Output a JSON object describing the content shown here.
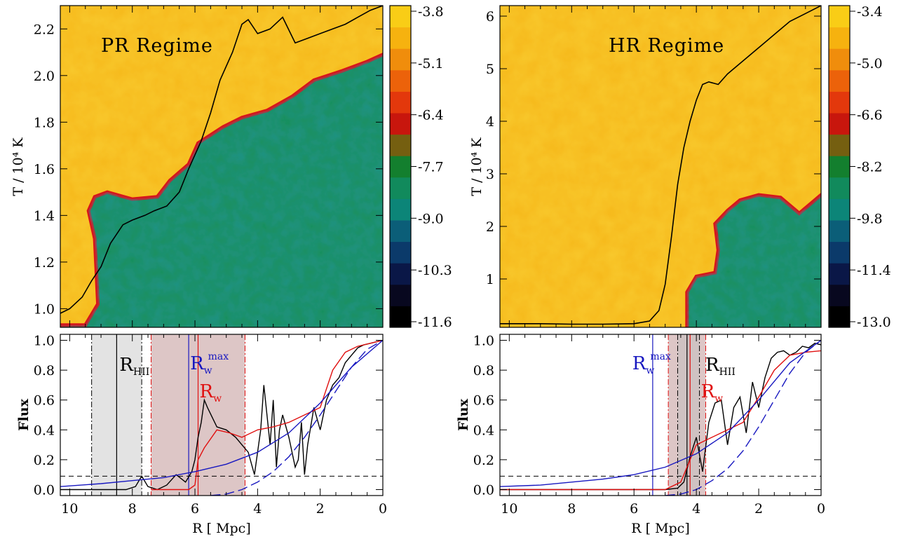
{
  "colorbar_palette": [
    "#000000",
    "#08081f",
    "#0a1747",
    "#0b3a6a",
    "#0b5e78",
    "#0c8578",
    "#118a5c",
    "#137f2e",
    "#755f10",
    "#c8160d",
    "#e3380c",
    "#ec620a",
    "#f08d0c",
    "#f6b20f",
    "#f9cd16"
  ],
  "chart_data": [
    {
      "id": "pr-heatmap",
      "type": "heatmap",
      "title": "",
      "annotation": "PR Regime",
      "xlabel": "",
      "ylabel": "T / 10⁴ K",
      "xlim": [
        10.3,
        0
      ],
      "ylim": [
        0.92,
        2.3
      ],
      "yticks": [
        "1.0",
        "1.2",
        "1.4",
        "1.6",
        "1.8",
        "2.0",
        "2.2"
      ],
      "colorbar_ticks": [
        "-3.8",
        "-5.1",
        "-6.4",
        "-7.7",
        "-9.0",
        "-10.3",
        "-11.6"
      ],
      "boundary_curve": [
        [
          10.3,
          0.93
        ],
        [
          9.5,
          0.93
        ],
        [
          9.1,
          1.02
        ],
        [
          9.2,
          1.3
        ],
        [
          9.4,
          1.42
        ],
        [
          9.2,
          1.48
        ],
        [
          8.8,
          1.5
        ],
        [
          8.0,
          1.47
        ],
        [
          7.2,
          1.48
        ],
        [
          6.8,
          1.55
        ],
        [
          6.2,
          1.62
        ],
        [
          5.9,
          1.71
        ],
        [
          5.1,
          1.78
        ],
        [
          4.5,
          1.82
        ],
        [
          3.7,
          1.85
        ],
        [
          2.9,
          1.91
        ],
        [
          2.2,
          1.98
        ],
        [
          1.3,
          2.02
        ],
        [
          0.5,
          2.06
        ],
        [
          0,
          2.09
        ]
      ],
      "line": {
        "x": [
          10.3,
          10.0,
          9.6,
          9.3,
          9.0,
          8.7,
          8.3,
          8.0,
          7.6,
          7.3,
          6.9,
          6.5,
          6.2,
          5.8,
          5.5,
          5.2,
          4.8,
          4.5,
          4.3,
          4.0,
          3.6,
          3.2,
          2.8,
          2.4,
          2.0,
          1.6,
          1.2,
          0.8,
          0.4,
          0
        ],
        "y": [
          0.98,
          1.0,
          1.05,
          1.12,
          1.18,
          1.28,
          1.36,
          1.38,
          1.4,
          1.42,
          1.44,
          1.5,
          1.6,
          1.72,
          1.84,
          1.98,
          2.1,
          2.22,
          2.24,
          2.18,
          2.2,
          2.25,
          2.14,
          2.16,
          2.18,
          2.2,
          2.22,
          2.25,
          2.28,
          2.3
        ]
      }
    },
    {
      "id": "hr-heatmap",
      "type": "heatmap",
      "title": "",
      "annotation": "HR Regime",
      "xlabel": "",
      "ylabel": "T / 10⁴ K",
      "xlim": [
        10.3,
        0
      ],
      "ylim": [
        0.08,
        6.2
      ],
      "yticks": [
        "1",
        "2",
        "3",
        "4",
        "5",
        "6"
      ],
      "colorbar_ticks": [
        "-3.4",
        "-5.0",
        "-6.6",
        "-8.2",
        "-9.8",
        "-11.4",
        "-13.0"
      ],
      "boundary_curve": [
        [
          4.3,
          0.08
        ],
        [
          4.3,
          0.75
        ],
        [
          4.0,
          1.05
        ],
        [
          3.4,
          1.12
        ],
        [
          3.3,
          1.55
        ],
        [
          3.4,
          2.05
        ],
        [
          3.0,
          2.3
        ],
        [
          2.6,
          2.5
        ],
        [
          2.0,
          2.6
        ],
        [
          1.3,
          2.55
        ],
        [
          0.7,
          2.25
        ],
        [
          0.3,
          2.45
        ],
        [
          0,
          2.6
        ]
      ],
      "line": {
        "x": [
          10.3,
          9.0,
          8.0,
          7.0,
          6.0,
          5.5,
          5.2,
          5.0,
          4.8,
          4.6,
          4.4,
          4.2,
          4.0,
          3.8,
          3.6,
          3.3,
          3.0,
          2.6,
          2.2,
          1.8,
          1.4,
          1.0,
          0.5,
          0
        ],
        "y": [
          0.15,
          0.15,
          0.14,
          0.14,
          0.15,
          0.2,
          0.4,
          0.9,
          1.8,
          2.8,
          3.5,
          4.0,
          4.4,
          4.7,
          4.75,
          4.7,
          4.9,
          5.1,
          5.3,
          5.5,
          5.7,
          5.9,
          6.05,
          6.2
        ]
      }
    },
    {
      "id": "pr-flux",
      "type": "line",
      "title": "",
      "xlabel": "R [ Mpc]",
      "ylabel": "Flux",
      "xlim": [
        10.3,
        0
      ],
      "ylim": [
        -0.04,
        1.04
      ],
      "xticks": [
        "10",
        "8",
        "6",
        "4",
        "2",
        "0"
      ],
      "yticks": [
        "0.0",
        "0.2",
        "0.4",
        "0.6",
        "0.8",
        "1.0"
      ],
      "hline": 0.09,
      "shaded_gray": [
        7.7,
        9.3
      ],
      "shaded_rose": [
        4.4,
        7.4
      ],
      "vline_black": 8.5,
      "vline_blue": 6.2,
      "vline_red": 5.9,
      "labels": {
        "rhii_main": "R",
        "rhii_sub": "HII",
        "rwmax_main": "R",
        "rwmax_sub": "w",
        "rwmax_sup": "max",
        "rw_main": "R",
        "rw_sub": "w"
      },
      "label_x": {
        "rhii": 8.5,
        "rwmax": 6.2,
        "rw": 5.9
      },
      "series": [
        {
          "color": "#000000",
          "x": [
            10.3,
            10.0,
            9.8,
            9.4,
            9.0,
            8.6,
            8.2,
            7.9,
            7.7,
            7.5,
            7.2,
            6.9,
            6.6,
            6.3,
            6.1,
            6.0,
            5.9,
            5.8,
            5.7,
            5.6,
            5.3,
            5.0,
            4.7,
            4.5,
            4.3,
            4.1,
            3.9,
            3.8,
            3.6,
            3.5,
            3.4,
            3.3,
            3.2,
            3.0,
            2.8,
            2.7,
            2.6,
            2.5,
            2.4,
            2.2,
            2.0,
            1.8,
            1.6,
            1.4,
            1.2,
            1.0,
            0.8,
            0.6,
            0.4,
            0.2,
            0
          ],
          "y": [
            0,
            0,
            0,
            0,
            0,
            0,
            0,
            0.02,
            0.09,
            0.02,
            0,
            0.03,
            0.1,
            0.05,
            0.12,
            0.2,
            0.35,
            0.45,
            0.6,
            0.55,
            0.42,
            0.4,
            0.35,
            0.3,
            0.25,
            0.1,
            0.4,
            0.7,
            0.3,
            0.6,
            0.15,
            0.4,
            0.5,
            0.35,
            0.15,
            0.2,
            0.45,
            0.1,
            0.3,
            0.55,
            0.4,
            0.6,
            0.7,
            0.75,
            0.85,
            0.9,
            0.95,
            0.97,
            0.98,
            0.99,
            1.0
          ]
        },
        {
          "color": "#e01010",
          "x": [
            7.4,
            7.0,
            6.5,
            6.2,
            6.0,
            5.9,
            5.7,
            5.3,
            4.9,
            4.5,
            4.0,
            3.5,
            3.0,
            2.5,
            2.0,
            1.6,
            1.2,
            0.8,
            0.4,
            0
          ],
          "y": [
            0,
            0,
            0,
            0,
            0.03,
            0.2,
            0.28,
            0.4,
            0.38,
            0.35,
            0.4,
            0.42,
            0.45,
            0.5,
            0.55,
            0.8,
            0.92,
            0.96,
            0.98,
            1.0
          ]
        },
        {
          "color": "#1818c0",
          "x": [
            10.3,
            9,
            8,
            7,
            6,
            5,
            4,
            3,
            2,
            1,
            0
          ],
          "y": [
            0.02,
            0.04,
            0.06,
            0.08,
            0.12,
            0.17,
            0.25,
            0.38,
            0.58,
            0.82,
            1.0
          ]
        },
        {
          "color": "#1818c0",
          "dashed": true,
          "x": [
            5.5,
            5.0,
            4.5,
            4.0,
            3.5,
            3.0,
            2.5,
            2.0,
            1.5,
            1.0,
            0.5,
            0
          ],
          "y": [
            -0.04,
            -0.03,
            0.0,
            0.05,
            0.12,
            0.22,
            0.35,
            0.5,
            0.66,
            0.82,
            0.94,
            1.0
          ]
        }
      ]
    },
    {
      "id": "hr-flux",
      "type": "line",
      "title": "",
      "xlabel": "R [ Mpc]",
      "ylabel": "Flux",
      "xlim": [
        10.3,
        0
      ],
      "ylim": [
        -0.04,
        1.04
      ],
      "xticks": [
        "10",
        "8",
        "6",
        "4",
        "2",
        "0"
      ],
      "yticks": [
        "0.0",
        "0.2",
        "0.4",
        "0.6",
        "0.8",
        "1.0"
      ],
      "hline": 0.09,
      "shaded_gray": [
        3.9,
        4.6
      ],
      "shaded_rose": [
        3.7,
        4.9
      ],
      "vline_black": 4.3,
      "vline_blue": 5.4,
      "vline_red": 4.2,
      "labels": {
        "rhii_main": "R",
        "rhii_sub": "HII",
        "rwmax_main": "R",
        "rwmax_sub": "w",
        "rwmax_sup": "max",
        "rw_main": "R",
        "rw_sub": "w"
      },
      "label_x": {
        "rhii": 3.8,
        "rwmax": 6.1,
        "rw": 3.9
      },
      "series": [
        {
          "color": "#000000",
          "x": [
            10.3,
            5.0,
            4.6,
            4.4,
            4.2,
            4.0,
            3.8,
            3.6,
            3.4,
            3.2,
            3.0,
            2.8,
            2.6,
            2.4,
            2.2,
            2.0,
            1.8,
            1.6,
            1.4,
            1.2,
            1.0,
            0.8,
            0.6,
            0.4,
            0.2,
            0
          ],
          "y": [
            0,
            0,
            0.01,
            0.05,
            0.22,
            0.35,
            0.12,
            0.45,
            0.58,
            0.6,
            0.3,
            0.55,
            0.62,
            0.38,
            0.72,
            0.55,
            0.75,
            0.88,
            0.92,
            0.93,
            0.9,
            0.92,
            0.96,
            0.95,
            0.98,
            0.97
          ]
        },
        {
          "color": "#e01010",
          "x": [
            10.3,
            6,
            5,
            4.5,
            4.2,
            4.0,
            3.5,
            3.0,
            2.5,
            2.0,
            1.5,
            1.0,
            0.5,
            0
          ],
          "y": [
            0,
            0,
            0,
            0.05,
            0.2,
            0.3,
            0.35,
            0.4,
            0.45,
            0.62,
            0.8,
            0.9,
            0.92,
            0.93
          ]
        },
        {
          "color": "#1818c0",
          "x": [
            10.3,
            9,
            8,
            7,
            6,
            5,
            4,
            3,
            2,
            1,
            0
          ],
          "y": [
            0.02,
            0.03,
            0.05,
            0.07,
            0.1,
            0.15,
            0.24,
            0.38,
            0.6,
            0.85,
            1.0
          ]
        },
        {
          "color": "#1818c0",
          "dashed": true,
          "x": [
            5.0,
            4.5,
            4.0,
            3.5,
            3.0,
            2.5,
            2.0,
            1.5,
            1.0,
            0.5,
            0
          ],
          "y": [
            -0.04,
            -0.03,
            0.0,
            0.06,
            0.14,
            0.26,
            0.42,
            0.6,
            0.78,
            0.92,
            1.0
          ]
        }
      ]
    }
  ]
}
